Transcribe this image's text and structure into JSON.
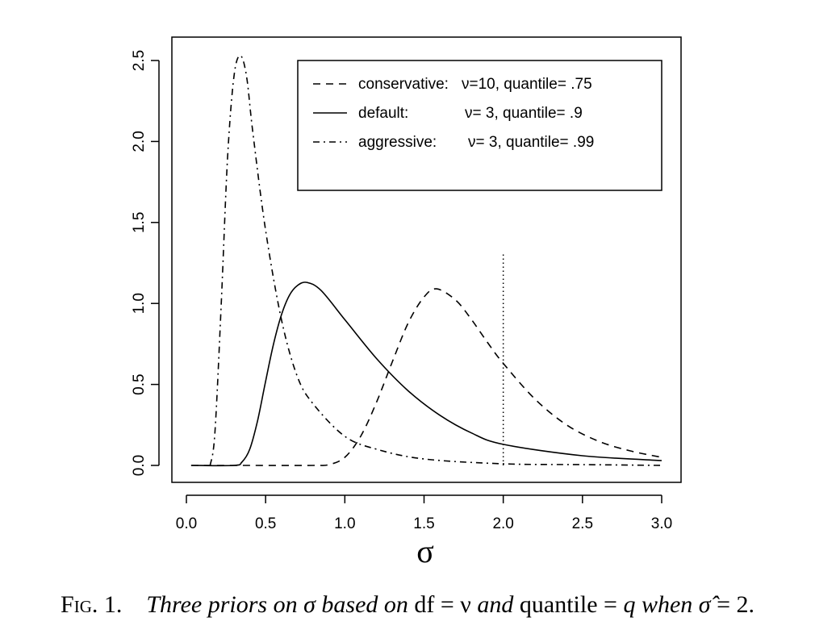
{
  "chart_data": {
    "type": "line",
    "xlabel": "σ",
    "ylabel": "",
    "xlim": [
      0.0,
      3.0
    ],
    "ylim": [
      0.0,
      2.5
    ],
    "x_ticks": [
      "0.0",
      "0.5",
      "1.0",
      "1.5",
      "2.0",
      "2.5",
      "3.0"
    ],
    "y_ticks": [
      "0.0",
      "0.5",
      "1.0",
      "1.5",
      "2.0",
      "2.5"
    ],
    "grid": false,
    "legend_position": "top-right",
    "legend": [
      {
        "name": "conservative:",
        "params": "ν=10, quantile= .75",
        "dash": "dashed"
      },
      {
        "name": "default:",
        "params": "ν= 3, quantile= .9",
        "dash": "solid"
      },
      {
        "name": "aggressive:",
        "params": "ν= 3, quantile= .99",
        "dash": "dashdot"
      }
    ],
    "series": [
      {
        "name": "conservative",
        "dash": "dashed",
        "x": [
          0.03,
          0.4,
          0.8,
          0.9,
          1.0,
          1.1,
          1.2,
          1.3,
          1.4,
          1.5,
          1.58,
          1.7,
          1.8,
          1.9,
          2.0,
          2.2,
          2.4,
          2.6,
          2.8,
          3.0
        ],
        "y": [
          0.0,
          0.0,
          0.0,
          0.005,
          0.05,
          0.18,
          0.39,
          0.64,
          0.88,
          1.04,
          1.09,
          1.02,
          0.9,
          0.76,
          0.63,
          0.41,
          0.25,
          0.15,
          0.09,
          0.05
        ]
      },
      {
        "name": "default",
        "dash": "solid",
        "x": [
          0.03,
          0.3,
          0.35,
          0.4,
          0.45,
          0.5,
          0.55,
          0.6,
          0.65,
          0.7,
          0.76,
          0.85,
          1.0,
          1.2,
          1.4,
          1.6,
          1.8,
          2.0,
          2.5,
          3.0
        ],
        "y": [
          0.0,
          0.0,
          0.02,
          0.1,
          0.28,
          0.52,
          0.75,
          0.93,
          1.05,
          1.11,
          1.13,
          1.08,
          0.9,
          0.66,
          0.46,
          0.31,
          0.2,
          0.13,
          0.06,
          0.03
        ]
      },
      {
        "name": "aggressive",
        "dash": "dashdot",
        "x": [
          0.15,
          0.18,
          0.22,
          0.26,
          0.3,
          0.34,
          0.38,
          0.42,
          0.5,
          0.6,
          0.7,
          0.8,
          1.0,
          1.2,
          1.5,
          2.0,
          2.5,
          3.0
        ],
        "y": [
          0.0,
          0.2,
          1.0,
          1.9,
          2.4,
          2.53,
          2.4,
          2.05,
          1.45,
          0.9,
          0.55,
          0.38,
          0.18,
          0.1,
          0.04,
          0.01,
          0.005,
          0.0
        ]
      }
    ],
    "reference_line": {
      "x": 2.0,
      "y_top": 1.32,
      "style": "dotted"
    }
  },
  "caption": {
    "fig_label": "Fig. 1.",
    "text_1": "Three priors on σ based on ",
    "text_2": "df = ν",
    "text_3": " and ",
    "text_4": "quantile = ",
    "text_5": "q",
    "text_6": " when ",
    "text_7": "σ̂",
    "text_8": " = 2."
  }
}
